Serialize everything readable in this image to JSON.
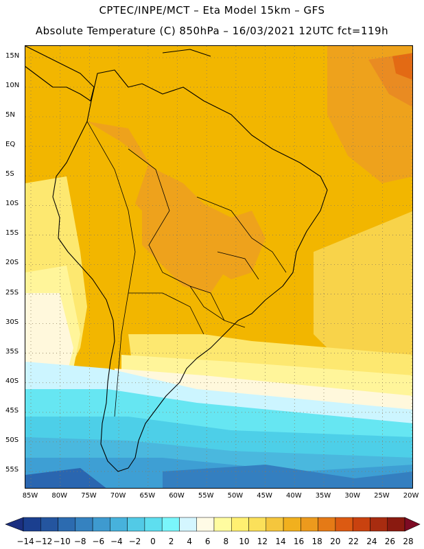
{
  "header": {
    "line1": "CPTEC/INPE/MCT –  Eta Model 15km – GFS",
    "line2": "Absolute Temperature (C) 850hPa – 16/03/2021 12UTC fct=119h"
  },
  "map": {
    "lat_labels": [
      "15N",
      "10N",
      "5N",
      "EQ",
      "5S",
      "10S",
      "15S",
      "20S",
      "25S",
      "30S",
      "35S",
      "40S",
      "45S",
      "50S",
      "55S"
    ],
    "lon_labels": [
      "85W",
      "80W",
      "75W",
      "70W",
      "65W",
      "60W",
      "55W",
      "50W",
      "45W",
      "40W",
      "35W",
      "30W",
      "25W",
      "20W"
    ],
    "region": "South America",
    "colors": {
      "t2": "#ccf5ff",
      "t6": "#fff8dc",
      "t10": "#fff59a",
      "t12": "#fde870",
      "t14": "#f8d34a",
      "t16": "#f2b600",
      "t18": "#eea21c",
      "t20": "#e98b22",
      "t22": "#e36a14",
      "c0": "#66e6f2",
      "cm2": "#4dcfe8",
      "cm4": "#4ab8de",
      "cm6": "#3e9fd4",
      "cm8": "#347fc0",
      "cm10": "#2a66b0"
    }
  },
  "colorbar": {
    "labels": [
      "-14",
      "-12",
      "-10",
      "-8",
      "-6",
      "-4",
      "-2",
      "0",
      "2",
      "4",
      "6",
      "8",
      "10",
      "12",
      "14",
      "16",
      "18",
      "20",
      "22",
      "24",
      "26",
      "28"
    ],
    "colors": [
      "#1b3f8f",
      "#24559f",
      "#2c6bb0",
      "#3582c0",
      "#3e9acf",
      "#47b2dc",
      "#52cae6",
      "#5edeef",
      "#7af6fb",
      "#d4f6ff",
      "#fffbe6",
      "#fffca0",
      "#fff071",
      "#fbe05a",
      "#f5c63d",
      "#f1b01e",
      "#ec9a1d",
      "#e57a16",
      "#dc5a12",
      "#c9420f",
      "#a82c10",
      "#8a1a10"
    ],
    "end_low": "#1b2f80",
    "end_high": "#7d0b24"
  }
}
